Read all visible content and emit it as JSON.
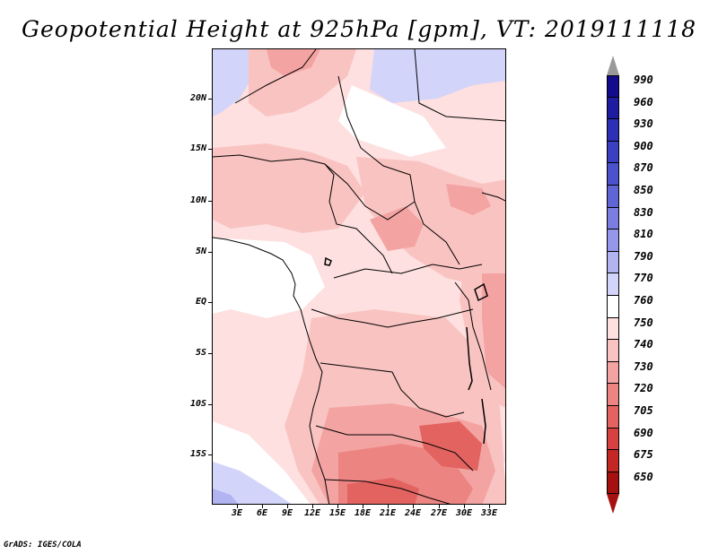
{
  "title": "Geopotential Height at 925hPa [gpm], VT: 2019111118",
  "latitude_labels": [
    "20N",
    "15N",
    "10N",
    "5N",
    "EQ",
    "5S",
    "10S",
    "15S"
  ],
  "longitude_labels": [
    "3E",
    "6E",
    "9E",
    "12E",
    "15E",
    "18E",
    "21E",
    "24E",
    "27E",
    "30E",
    "33E"
  ],
  "colorbar": {
    "labels": [
      "990",
      "960",
      "930",
      "900",
      "870",
      "850",
      "830",
      "810",
      "790",
      "770",
      "760",
      "750",
      "740",
      "730",
      "720",
      "705",
      "690",
      "675",
      "650"
    ],
    "colors": [
      "#120b8c",
      "#1e1ca0",
      "#2d2fb4",
      "#3b40c2",
      "#4b52cc",
      "#6065d6",
      "#7a7ee0",
      "#9598ea",
      "#b2b4f2",
      "#d3d4fa",
      "#ffffff",
      "#fde0df",
      "#f9c3c1",
      "#f3a3a1",
      "#ec8482",
      "#e26360",
      "#d5423f",
      "#c42825",
      "#a5110f"
    ],
    "top_arrow_color": "#9a9a9a",
    "bottom_arrow_color": "#a5110f"
  },
  "map": {
    "region": "Central and Southern Africa",
    "lon_range": [
      0,
      35
    ],
    "lat_range": [
      -20,
      24
    ]
  },
  "footer": "GrADS: IGES/COLA"
}
